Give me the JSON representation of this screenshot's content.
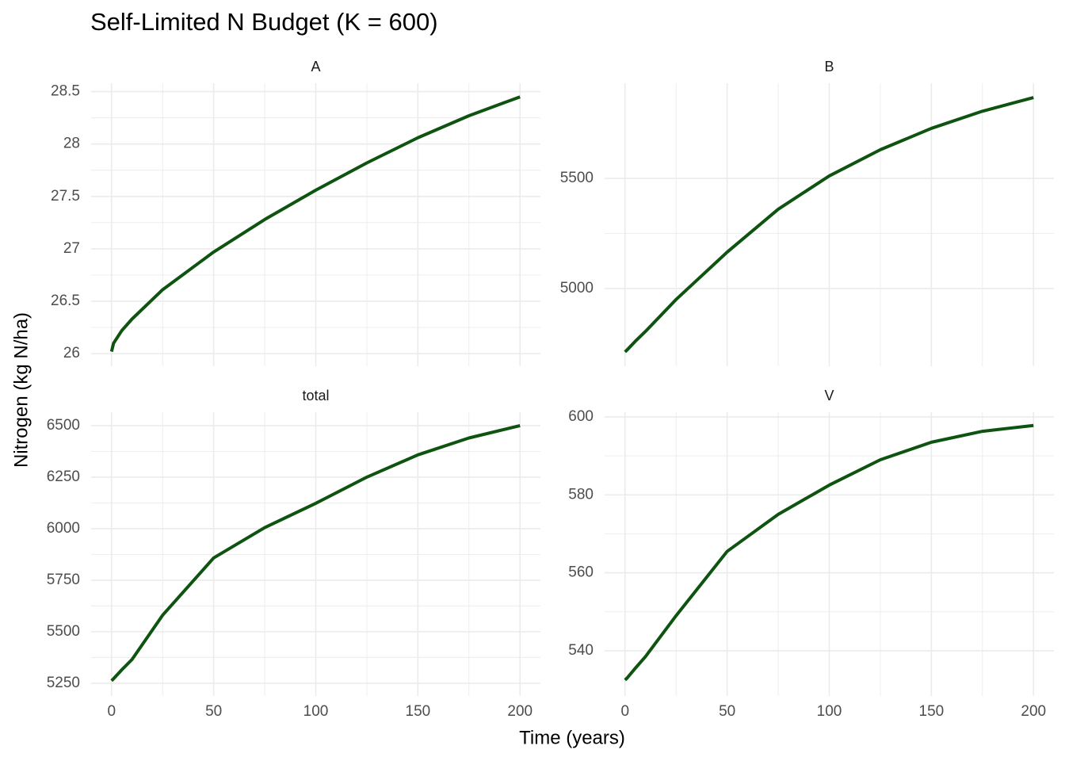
{
  "title": "Self-Limited N Budget (K = 600)",
  "x_label": "Time (years)",
  "y_label": "Nitrogen (kg N/ha)",
  "chart_data": [
    {
      "type": "line",
      "title": "A",
      "x": [
        0,
        1,
        5,
        10,
        25,
        50,
        75,
        100,
        125,
        150,
        175,
        200
      ],
      "values": [
        26.02,
        26.1,
        26.22,
        26.33,
        26.61,
        26.97,
        27.28,
        27.56,
        27.82,
        28.06,
        28.27,
        28.45
      ],
      "color": "#0e5410",
      "xlim": [
        -10,
        210
      ],
      "ylim": [
        25.88,
        28.58
      ],
      "xticks": [
        0,
        50,
        100,
        150,
        200
      ],
      "yticks": [
        26.0,
        26.5,
        27.0,
        27.5,
        28.0,
        28.5
      ],
      "grid": true
    },
    {
      "type": "line",
      "title": "B",
      "x": [
        0,
        1,
        5,
        10,
        25,
        50,
        75,
        100,
        125,
        150,
        175,
        200
      ],
      "values": [
        4712,
        4721,
        4760,
        4805,
        4950,
        5165,
        5360,
        5511,
        5630,
        5727,
        5805,
        5867
      ],
      "color": "#0e5410",
      "xlim": [
        -10,
        210
      ],
      "ylim": [
        4647,
        5932
      ],
      "xticks": [
        0,
        50,
        100,
        150,
        200
      ],
      "yticks": [
        5000,
        5500
      ],
      "grid": true
    },
    {
      "type": "line",
      "title": "total",
      "x": [
        0,
        1,
        5,
        10,
        25,
        50,
        75,
        100,
        125,
        150,
        175,
        200
      ],
      "values": [
        5262,
        5272,
        5315,
        5365,
        5580,
        5858,
        6005,
        6123,
        6250,
        6358,
        6440,
        6500
      ],
      "color": "#0e5410",
      "xlim": [
        -10,
        210
      ],
      "ylim": [
        5188,
        6565
      ],
      "xticks": [
        0,
        50,
        100,
        150,
        200
      ],
      "yticks": [
        5250,
        5500,
        5750,
        6000,
        6250,
        6500
      ],
      "grid": true
    },
    {
      "type": "line",
      "title": "V",
      "x": [
        0,
        1,
        5,
        10,
        25,
        50,
        75,
        100,
        125,
        150,
        175,
        200
      ],
      "values": [
        532.5,
        533,
        535.5,
        538.5,
        549,
        565.5,
        575,
        582.5,
        589,
        593.5,
        596.3,
        597.8
      ],
      "color": "#0e5410",
      "xlim": [
        -10,
        210
      ],
      "ylim": [
        528.4,
        601.2
      ],
      "xticks": [
        0,
        50,
        100,
        150,
        200
      ],
      "yticks": [
        540,
        560,
        580,
        600
      ],
      "grid": true
    }
  ]
}
